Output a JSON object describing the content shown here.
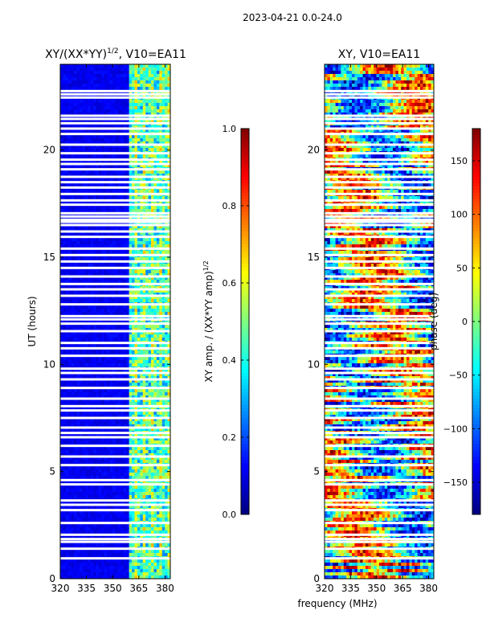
{
  "figure": {
    "suptitle": "2023-04-21 0.0-24.0",
    "xlabel": "frequency (MHz)"
  },
  "chart_data": [
    {
      "type": "heatmap",
      "title_main": "XY/(XX*YY)",
      "title_exp": "1/2",
      "title_rest": ", V10=EA11",
      "ylabel": "UT (hours)",
      "xticks": [
        "320",
        "335",
        "350",
        "365",
        "380"
      ],
      "xtick_values": [
        320,
        335,
        350,
        365,
        380
      ],
      "xlim": [
        320,
        383
      ],
      "yticks": [
        "0",
        "5",
        "10",
        "15",
        "20"
      ],
      "ytick_values": [
        0,
        5,
        10,
        15,
        20
      ],
      "ylim": [
        0,
        24
      ],
      "colorbar": {
        "label_main": "XY amp. / (XX*YY amp)",
        "label_exp": "1/2",
        "range": [
          0.0,
          1.0
        ],
        "ticks": [
          "0.0",
          "0.2",
          "0.4",
          "0.6",
          "0.8",
          "1.0"
        ],
        "tick_values": [
          0.0,
          0.2,
          0.4,
          0.6,
          0.8,
          1.0
        ]
      },
      "bright_band_mhz": [
        360,
        383
      ]
    },
    {
      "type": "heatmap",
      "title_main": "XY, V10=EA11",
      "ylabel": "",
      "xticks": [
        "320",
        "335",
        "350",
        "365",
        "380"
      ],
      "xtick_values": [
        320,
        335,
        350,
        365,
        380
      ],
      "xlim": [
        320,
        383
      ],
      "yticks": [
        "0",
        "5",
        "10",
        "15",
        "20"
      ],
      "ytick_values": [
        0,
        5,
        10,
        15,
        20
      ],
      "ylim": [
        0,
        24
      ],
      "colorbar": {
        "label_main": "phase (deg)",
        "range": [
          -180,
          180
        ],
        "ticks": [
          "−150",
          "−100",
          "−50",
          "0",
          "50",
          "100",
          "150"
        ],
        "tick_values": [
          -150,
          -100,
          -50,
          0,
          50,
          100,
          150
        ]
      }
    }
  ],
  "flagged_ut_hours": [
    0.95,
    1.4,
    1.72,
    1.85,
    2.05,
    2.6,
    3.2,
    3.45,
    3.65,
    4.4,
    4.6,
    5.3,
    5.7,
    6.2,
    6.6,
    6.8,
    7.05,
    7.5,
    7.85,
    8.05,
    8.4,
    8.9,
    9.3,
    9.6,
    9.8,
    10.4,
    10.75,
    11.0,
    11.55,
    11.9,
    12.1,
    12.25,
    12.8,
    13.2,
    13.5,
    13.75,
    14.1,
    14.5,
    14.8,
    15.1,
    15.4,
    15.95,
    16.2,
    16.5,
    16.65,
    16.75,
    16.9,
    17.05,
    17.45,
    17.65,
    17.95,
    18.25,
    18.5,
    18.75,
    19.1,
    19.35,
    19.55,
    19.85,
    20.25,
    20.75,
    21.0,
    21.25,
    21.45,
    21.6,
    22.45,
    22.6,
    22.75
  ]
}
